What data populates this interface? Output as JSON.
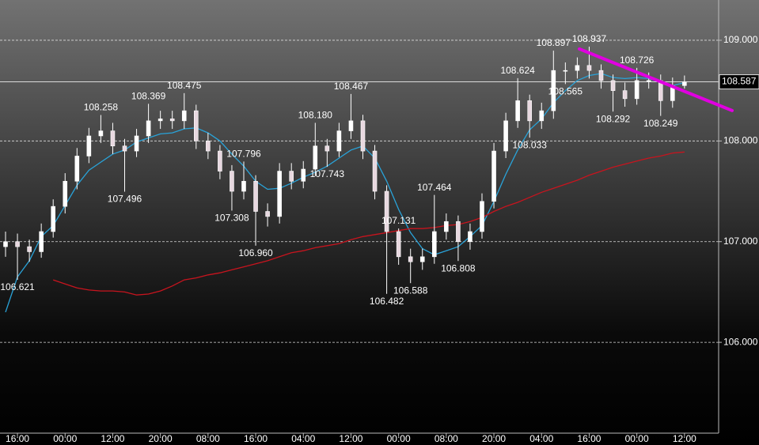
{
  "chart_data": {
    "type": "candlestick",
    "categories": [
      null,
      "16:00",
      null,
      null,
      null,
      "00:00",
      null,
      null,
      null,
      "12:00",
      null,
      null,
      null,
      "20:00",
      null,
      null,
      null,
      "08:00",
      null,
      null,
      null,
      "16:00",
      null,
      null,
      null,
      "04:00",
      null,
      null,
      null,
      "12:00",
      null,
      null,
      null,
      "00:00",
      null,
      null,
      null,
      "08:00",
      null,
      null,
      null,
      "20:00",
      null,
      null,
      null,
      "04:00",
      null,
      null,
      null,
      "16:00",
      null,
      null,
      null,
      "00:00",
      null,
      null,
      null,
      "12:00"
    ],
    "open": [
      106.95,
      107.0,
      106.95,
      106.9,
      107.1,
      107.35,
      107.6,
      107.85,
      108.05,
      108.1,
      107.95,
      107.9,
      108.05,
      108.2,
      108.22,
      108.2,
      108.3,
      108.0,
      107.9,
      107.7,
      107.5,
      107.6,
      107.3,
      107.25,
      107.7,
      107.6,
      107.72,
      107.95,
      107.9,
      108.1,
      108.2,
      107.9,
      107.5,
      107.1,
      106.85,
      106.8,
      106.85,
      107.1,
      107.2,
      107.0,
      107.1,
      107.4,
      107.9,
      108.2,
      108.4,
      108.2,
      108.3,
      108.7,
      108.7,
      108.75,
      108.7,
      108.6,
      108.5,
      108.42,
      108.6,
      108.6,
      108.4,
      108.55
    ],
    "high": [
      107.1,
      107.08,
      107.02,
      107.18,
      107.42,
      107.68,
      107.93,
      108.13,
      108.258,
      108.18,
      108.02,
      108.12,
      108.369,
      108.3,
      108.3,
      108.475,
      108.36,
      108.08,
      107.96,
      107.76,
      107.796,
      107.66,
      107.38,
      107.78,
      107.78,
      107.8,
      108.18,
      108.02,
      108.18,
      108.467,
      108.26,
      107.96,
      107.56,
      107.131,
      106.93,
      106.93,
      107.464,
      107.28,
      107.26,
      107.18,
      107.48,
      107.98,
      108.28,
      108.624,
      108.46,
      108.38,
      108.897,
      108.78,
      108.83,
      108.937,
      108.76,
      108.66,
      108.58,
      108.726,
      108.68,
      108.66,
      108.63,
      108.65
    ],
    "low": [
      106.85,
      106.621,
      106.8,
      106.84,
      107.04,
      107.28,
      107.52,
      107.78,
      107.98,
      107.87,
      107.496,
      107.84,
      107.98,
      108.12,
      108.12,
      108.12,
      107.92,
      107.82,
      107.62,
      107.308,
      107.42,
      106.96,
      107.15,
      107.18,
      107.52,
      107.53,
      107.65,
      107.743,
      107.84,
      108.02,
      107.82,
      107.42,
      106.482,
      106.77,
      106.588,
      106.72,
      106.78,
      107.02,
      106.808,
      106.92,
      107.03,
      107.33,
      107.83,
      108.13,
      108.033,
      108.12,
      108.22,
      108.565,
      108.62,
      108.62,
      108.52,
      108.292,
      108.34,
      108.36,
      108.52,
      108.249,
      108.33,
      108.52
    ],
    "close": [
      107.0,
      106.95,
      106.9,
      107.1,
      107.35,
      107.6,
      107.85,
      108.05,
      108.1,
      107.95,
      107.9,
      108.05,
      108.2,
      108.22,
      108.2,
      108.3,
      108.0,
      107.9,
      107.7,
      107.5,
      107.6,
      107.3,
      107.25,
      107.7,
      107.6,
      107.72,
      107.95,
      107.9,
      108.1,
      108.2,
      107.9,
      107.5,
      107.1,
      106.85,
      106.8,
      106.85,
      107.1,
      107.2,
      107.0,
      107.1,
      107.4,
      107.9,
      108.2,
      108.4,
      108.2,
      108.3,
      108.7,
      108.7,
      108.75,
      108.7,
      108.6,
      108.5,
      108.42,
      108.6,
      108.6,
      108.4,
      108.55,
      108.587
    ],
    "candle_color": "#ffffff",
    "moving_averages": [
      {
        "color": "#29a3d9",
        "values": [
          106.3,
          106.65,
          106.81,
          107.05,
          107.16,
          107.36,
          107.56,
          107.71,
          107.79,
          107.87,
          107.91,
          107.99,
          108.03,
          108.07,
          108.08,
          108.12,
          108.13,
          108.08,
          108.0,
          107.87,
          107.75,
          107.6,
          107.52,
          107.53,
          107.58,
          107.64,
          107.69,
          107.75,
          107.83,
          107.91,
          107.95,
          107.83,
          107.6,
          107.32,
          107.09,
          106.93,
          106.87,
          106.91,
          106.95,
          107.05,
          107.16,
          107.4,
          107.67,
          107.91,
          108.11,
          108.22,
          108.38,
          108.5,
          108.6,
          108.65,
          108.67,
          108.63,
          108.62,
          108.63,
          108.62,
          108.58,
          108.55,
          108.58
        ]
      },
      {
        "color": "#c8141e",
        "values": [
          null,
          null,
          null,
          null,
          106.62,
          106.58,
          106.54,
          106.52,
          106.51,
          106.51,
          106.5,
          106.47,
          106.48,
          106.51,
          106.56,
          106.62,
          106.64,
          106.67,
          106.69,
          106.72,
          106.75,
          106.78,
          106.81,
          106.85,
          106.89,
          106.91,
          106.94,
          106.96,
          106.98,
          107.02,
          107.05,
          107.07,
          107.09,
          107.11,
          107.13,
          107.13,
          107.14,
          107.16,
          107.17,
          107.2,
          107.24,
          107.3,
          107.35,
          107.39,
          107.44,
          107.49,
          107.53,
          107.57,
          107.61,
          107.66,
          107.7,
          107.74,
          107.77,
          107.8,
          107.83,
          107.85,
          107.88,
          107.89
        ]
      }
    ],
    "annotations": [
      {
        "index": 1,
        "value": 106.621,
        "label": "106.621"
      },
      {
        "index": 8,
        "value": 108.258,
        "label": "108.258"
      },
      {
        "index": 10,
        "value": 107.496,
        "label": "107.496"
      },
      {
        "index": 12,
        "value": 108.369,
        "label": "108.369"
      },
      {
        "index": 15,
        "value": 108.475,
        "label": "108.475"
      },
      {
        "index": 19,
        "value": 107.308,
        "label": "107.308"
      },
      {
        "index": 20,
        "value": 107.796,
        "label": "107.796"
      },
      {
        "index": 21,
        "value": 106.96,
        "label": "106.960"
      },
      {
        "index": 26,
        "value": 108.18,
        "label": "108.180"
      },
      {
        "index": 27,
        "value": 107.743,
        "label": "107.743"
      },
      {
        "index": 29,
        "value": 108.467,
        "label": "108.467"
      },
      {
        "index": 32,
        "value": 106.482,
        "label": "106.482"
      },
      {
        "index": 33,
        "value": 107.131,
        "label": "107.131"
      },
      {
        "index": 34,
        "value": 106.588,
        "label": "106.588"
      },
      {
        "index": 36,
        "value": 107.464,
        "label": "107.464"
      },
      {
        "index": 38,
        "value": 106.808,
        "label": "106.808"
      },
      {
        "index": 43,
        "value": 108.624,
        "label": "108.624"
      },
      {
        "index": 44,
        "value": 108.033,
        "label": "108.033"
      },
      {
        "index": 46,
        "value": 108.897,
        "label": "108.897"
      },
      {
        "index": 47,
        "value": 108.565,
        "label": "108.565"
      },
      {
        "index": 49,
        "value": 108.937,
        "label": "108.937"
      },
      {
        "index": 51,
        "value": 108.292,
        "label": "108.292"
      },
      {
        "index": 53,
        "value": 108.726,
        "label": "108.726"
      },
      {
        "index": 55,
        "value": 108.249,
        "label": "108.249"
      }
    ],
    "trendline": {
      "color": "#e000e0",
      "x": [
        48.17,
        61.0
      ],
      "y": [
        108.914,
        108.302
      ]
    },
    "last_price": 108.587,
    "ylim": [
      105.098,
      109.4
    ],
    "yticks": [
      {
        "value": 106,
        "label": "106.000"
      },
      {
        "value": 107,
        "label": "107.000"
      },
      {
        "value": 108,
        "label": "108.000"
      },
      {
        "value": 109,
        "label": "109.000"
      }
    ],
    "grid": true
  }
}
